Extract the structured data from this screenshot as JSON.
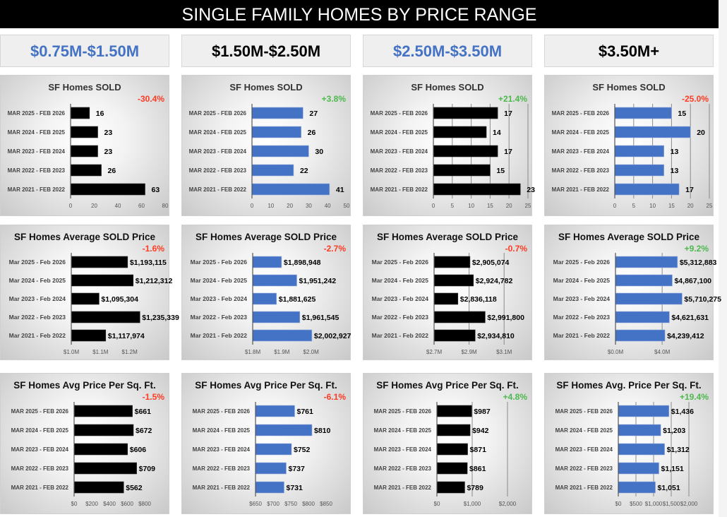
{
  "header": {
    "title": "SINGLE FAMILY HOMES BY PRICE RANGE"
  },
  "columns": [
    {
      "label": "$0.75M-$1.50M",
      "color": "#4472C4"
    },
    {
      "label": "$1.50M-$2.50M",
      "color": "#000000"
    },
    {
      "label": "$2.50M-$3.50M",
      "color": "#4472C4"
    },
    {
      "label": "$3.50M+",
      "color": "#000000"
    }
  ],
  "colors": {
    "bar_black": "#000000",
    "bar_blue": "#4472C4",
    "negative": "#FF3B22",
    "positive": "#4CB84C"
  },
  "chart_data": [
    {
      "type": "bar",
      "orientation": "horizontal",
      "title": "SF Homes SOLD",
      "change": "-30.4%",
      "change_sign": "negative",
      "bar_color": "#000000",
      "grid": false,
      "categories": [
        "MAR 2025 - FEB 2026",
        "MAR 2024 - FEB 2025",
        "MAR 2023 - FEB 2024",
        "MAR 2022 - FEB 2023",
        "MAR 2021 - FEB 2022"
      ],
      "values": [
        16,
        23,
        23,
        26,
        63
      ],
      "data_labels": [
        "16",
        "23",
        "23",
        "26",
        "63"
      ],
      "xlim": [
        0,
        80
      ],
      "ticks": [
        0,
        20,
        40,
        60,
        80
      ],
      "tick_labels": [
        "0",
        "20",
        "40",
        "60",
        "80"
      ]
    },
    {
      "type": "bar",
      "orientation": "horizontal",
      "title": "SF Homes SOLD",
      "change": "+3.8%",
      "change_sign": "positive",
      "bar_color": "#4472C4",
      "grid": false,
      "categories": [
        "MAR 2025 - FEB 2026",
        "MAR 2024 - FEB 2025",
        "MAR 2023 - FEB 2024",
        "MAR 2022 - FEB 2023",
        "MAR 2021 - FEB 2022"
      ],
      "values": [
        27,
        26,
        30,
        22,
        41
      ],
      "data_labels": [
        "27",
        "26",
        "30",
        "22",
        "41"
      ],
      "xlim": [
        0,
        50
      ],
      "ticks": [
        0,
        10,
        20,
        30,
        40,
        50
      ],
      "tick_labels": [
        "0",
        "10",
        "20",
        "30",
        "40",
        "50"
      ]
    },
    {
      "type": "bar",
      "orientation": "horizontal",
      "title": "SF Homes SOLD",
      "change": "+21.4%",
      "change_sign": "positive",
      "bar_color": "#000000",
      "grid": true,
      "categories": [
        "MAR 2025 - FEB 2026",
        "MAR 2024 - FEB 2025",
        "MAR 2023 - FEB 2024",
        "MAR 2022 - FEB 2023",
        "MAR 2021 - FEB 2022"
      ],
      "values": [
        17,
        14,
        17,
        15,
        23
      ],
      "data_labels": [
        "17",
        "14",
        "17",
        "15",
        "23"
      ],
      "xlim": [
        0,
        25
      ],
      "ticks": [
        0,
        5,
        10,
        15,
        20,
        25
      ],
      "tick_labels": [
        "0",
        "5",
        "10",
        "15",
        "20",
        "25"
      ]
    },
    {
      "type": "bar",
      "orientation": "horizontal",
      "title": "SF Homes SOLD",
      "change": "-25.0%",
      "change_sign": "negative",
      "bar_color": "#4472C4",
      "grid": true,
      "categories": [
        "MAR 2025 - FEB 2026",
        "MAR 2024 - FEB 2025",
        "MAR 2023 - FEB 2024",
        "MAR 2022 - FEB 2023",
        "MAR 2021 - FEB 2022"
      ],
      "values": [
        15,
        20,
        13,
        13,
        17
      ],
      "data_labels": [
        "15",
        "20",
        "13",
        "13",
        "17"
      ],
      "xlim": [
        0,
        25
      ],
      "ticks": [
        0,
        5,
        10,
        15,
        20,
        25
      ],
      "tick_labels": [
        "0",
        "5",
        "10",
        "15",
        "20",
        "25"
      ]
    },
    {
      "type": "bar",
      "orientation": "horizontal",
      "title": "SF Homes Average SOLD Price",
      "change": "-1.6%",
      "change_sign": "negative",
      "bar_color": "#000000",
      "grid": false,
      "categories": [
        "Mar 2025 - Feb 2026",
        "Mar 2024 - Feb 2025",
        "Mar 2023 - Feb 2024",
        "Mar 2022 - Feb 2023",
        "Mar 2021 - Feb 2022"
      ],
      "values": [
        1193115,
        1212312,
        1095304,
        1235339,
        1117974
      ],
      "data_labels": [
        "$1,193,115",
        "$1,212,312",
        "$1,095,304",
        "$1,235,339",
        "$1,117,974"
      ],
      "xlim": [
        1000000,
        1300000
      ],
      "ticks": [
        1000000,
        1100000,
        1200000
      ],
      "tick_labels": [
        "$1.0M",
        "$1.1M",
        "$1.2M"
      ]
    },
    {
      "type": "bar",
      "orientation": "horizontal",
      "title": "SF Homes Average SOLD Price",
      "change": "-2.7%",
      "change_sign": "negative",
      "bar_color": "#4472C4",
      "grid": false,
      "categories": [
        "Mar 2025 - Feb 2026",
        "Mar 2024 - Feb 2025",
        "Mar 2023 - Feb 2024",
        "Mar 2022 - Feb 2023",
        "Mar 2021 - Feb 2022"
      ],
      "values": [
        1898948,
        1951242,
        1881625,
        1961545,
        2002927
      ],
      "data_labels": [
        "$1,898,948",
        "$1,951,242",
        "$1,881,625",
        "$1,961,545",
        "$2,002,927"
      ],
      "xlim": [
        1800000,
        2100000
      ],
      "ticks": [
        1800000,
        1900000,
        2000000
      ],
      "tick_labels": [
        "$1.8M",
        "$1.9M",
        "$2.0M"
      ]
    },
    {
      "type": "bar",
      "orientation": "horizontal",
      "title": "SF Homes Average SOLD Price",
      "change": "-0.7%",
      "change_sign": "negative",
      "bar_color": "#000000",
      "grid": true,
      "categories": [
        "Mar 2025 - Feb 2026",
        "Mar 2024 - Feb 2025",
        "Mar 2023 - Feb 2024",
        "Mar 2022 - Feb 2023",
        "Mar 2021 - Feb 2022"
      ],
      "values": [
        2905074,
        2924782,
        2836118,
        2991800,
        2934810
      ],
      "data_labels": [
        "$2,905,074",
        "$2,924,782",
        "$2,836,118",
        "$2,991,800",
        "$2,934,810"
      ],
      "xlim": [
        2700000,
        3200000
      ],
      "ticks": [
        2700000,
        2900000,
        3100000
      ],
      "tick_labels": [
        "$2.7M",
        "$2.9M",
        "$3.1M"
      ]
    },
    {
      "type": "bar",
      "orientation": "horizontal",
      "title": "SF Homes Average SOLD Price",
      "change": "+9.2%",
      "change_sign": "positive",
      "bar_color": "#4472C4",
      "grid": true,
      "categories": [
        "Mar 2025 - Feb 2026",
        "Mar 2024 - Feb 2025",
        "Mar 2023 - Feb 2024",
        "Mar 2022 - Feb 2023",
        "Mar 2021 - Feb 2022"
      ],
      "values": [
        5312883,
        4867100,
        5710275,
        4621631,
        4239412
      ],
      "data_labels": [
        "$5,312,883",
        "$4,867,100",
        "$5,710,275",
        "$4,621,631",
        "$4,239,412"
      ],
      "xlim": [
        0,
        7500000
      ],
      "ticks": [
        0,
        4000000
      ],
      "tick_labels": [
        "$0.0M",
        "$4.0M"
      ]
    },
    {
      "type": "bar",
      "orientation": "horizontal",
      "title": "SF Homes Avg Price Per Sq. Ft.",
      "change": "-1.5%",
      "change_sign": "negative",
      "bar_color": "#000000",
      "grid": false,
      "categories": [
        "MAR 2025 - FEB 2026",
        "MAR 2024 - FEB 2025",
        "MAR 2023 - FEB 2024",
        "MAR 2022 - FEB 2023",
        "MAR 2021 - FEB 2022"
      ],
      "values": [
        661,
        672,
        606,
        709,
        562
      ],
      "data_labels": [
        "$661",
        "$672",
        "$606",
        "$709",
        "$562"
      ],
      "xlim": [
        0,
        800
      ],
      "ticks": [
        0,
        200,
        400,
        600,
        800
      ],
      "tick_labels": [
        "$0",
        "$200",
        "$400",
        "$600",
        "$800"
      ]
    },
    {
      "type": "bar",
      "orientation": "horizontal",
      "title": "SF Homes Avg Price Per Sq. Ft.",
      "change": "-6.1%",
      "change_sign": "negative",
      "bar_color": "#4472C4",
      "grid": false,
      "categories": [
        "MAR 2025 - FEB 2026",
        "MAR 2024 - FEB 2025",
        "MAR 2023 - FEB 2024",
        "MAR 2022 - FEB 2023",
        "MAR 2021 - FEB 2022"
      ],
      "values": [
        761,
        810,
        752,
        737,
        731
      ],
      "data_labels": [
        "$761",
        "$810",
        "$752",
        "$737",
        "$731"
      ],
      "xlim": [
        650,
        850
      ],
      "ticks": [
        650,
        700,
        750,
        800,
        850
      ],
      "tick_labels": [
        "$650",
        "$700",
        "$750",
        "$800",
        "$850"
      ]
    },
    {
      "type": "bar",
      "orientation": "horizontal",
      "title": "SF Homes Avg Price Per Sq. Ft.",
      "change": "+4.8%",
      "change_sign": "positive",
      "bar_color": "#000000",
      "grid": true,
      "categories": [
        "MAR 2025 - FEB 2026",
        "MAR 2024 - FEB 2025",
        "MAR 2023 - FEB 2024",
        "MAR 2022 - FEB 2023",
        "MAR 2021 - FEB 2022"
      ],
      "values": [
        987,
        942,
        871,
        861,
        789
      ],
      "data_labels": [
        "$987",
        "$942",
        "$871",
        "$861",
        "$789"
      ],
      "xlim": [
        0,
        2000
      ],
      "ticks": [
        0,
        1000,
        2000
      ],
      "tick_labels": [
        "$0",
        "$1,000",
        "$2,000"
      ]
    },
    {
      "type": "bar",
      "orientation": "horizontal",
      "title": "SF Homes Avg. Price Per Sq. Ft.",
      "change": "+19.4%",
      "change_sign": "positive",
      "bar_color": "#4472C4",
      "grid": true,
      "categories": [
        "MAR 2025 - FEB 2026",
        "MAR 2024 - FEB 2025",
        "MAR 2023 - FEB 2024",
        "MAR 2022 - FEB 2023",
        "MAR 2021 - FEB 2022"
      ],
      "values": [
        1436,
        1203,
        1312,
        1151,
        1051
      ],
      "data_labels": [
        "$1,436",
        "$1,203",
        "$1,312",
        "$1,151",
        "$1,051"
      ],
      "xlim": [
        0,
        2000
      ],
      "ticks": [
        0,
        500,
        1000,
        1500,
        2000
      ],
      "tick_labels": [
        "$0",
        "$500",
        "$1,000",
        "$1,500",
        "$2,000"
      ]
    }
  ]
}
